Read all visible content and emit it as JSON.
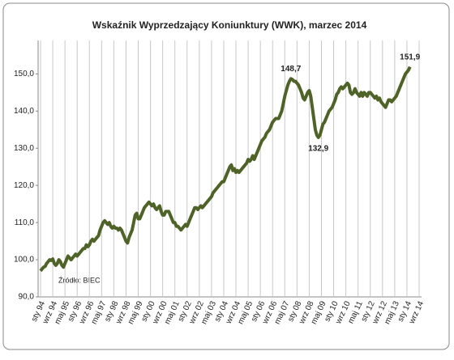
{
  "chart_data": {
    "type": "line",
    "title": "Wskaźnik Wyprzedzający Koniunktury (WWK), marzec 2014",
    "source": "Źródło: BIEC",
    "categories": [
      "sty 94",
      null,
      null,
      null,
      null,
      null,
      null,
      null,
      "wrz 94",
      null,
      null,
      null,
      null,
      null,
      null,
      null,
      "maj 95",
      null,
      null,
      null,
      null,
      null,
      null,
      null,
      "sty 96",
      null,
      null,
      null,
      null,
      null,
      null,
      null,
      "wrz 96",
      null,
      null,
      null,
      null,
      null,
      null,
      null,
      "maj 97",
      null,
      null,
      null,
      null,
      null,
      null,
      null,
      "sty 98",
      null,
      null,
      null,
      null,
      null,
      null,
      null,
      "wrz 98",
      null,
      null,
      null,
      null,
      null,
      null,
      null,
      "maj 99",
      null,
      null,
      null,
      null,
      null,
      null,
      null,
      "sty 00",
      null,
      null,
      null,
      null,
      null,
      null,
      null,
      "wrz 00",
      null,
      null,
      null,
      null,
      null,
      null,
      null,
      "maj 01",
      null,
      null,
      null,
      null,
      null,
      null,
      null,
      "sty 02",
      null,
      null,
      null,
      null,
      null,
      null,
      null,
      "wrz 02",
      null,
      null,
      null,
      null,
      null,
      null,
      null,
      "maj 03",
      null,
      null,
      null,
      null,
      null,
      null,
      null,
      "sty 04",
      null,
      null,
      null,
      null,
      null,
      null,
      null,
      "wrz 04",
      null,
      null,
      null,
      null,
      null,
      null,
      null,
      "maj 05",
      null,
      null,
      null,
      null,
      null,
      null,
      null,
      "sty 06",
      null,
      null,
      null,
      null,
      null,
      null,
      null,
      "wrz 06",
      null,
      null,
      null,
      null,
      null,
      null,
      null,
      "maj 07",
      null,
      null,
      null,
      null,
      null,
      null,
      null,
      "sty 08",
      null,
      null,
      null,
      null,
      null,
      null,
      null,
      "wrz 08",
      null,
      null,
      null,
      null,
      null,
      null,
      null,
      "maj 09",
      null,
      null,
      null,
      null,
      null,
      null,
      null,
      "sty 10",
      null,
      null,
      null,
      null,
      null,
      null,
      null,
      "wrz 10",
      null,
      null,
      null,
      null,
      null,
      null,
      null,
      "maj 11",
      null,
      null,
      null,
      null,
      null,
      null,
      null,
      "sty 12",
      null,
      null,
      null,
      null,
      null,
      null,
      null,
      "wrz 12",
      null,
      null,
      null,
      null,
      null,
      null,
      null,
      "maj 13",
      null,
      null,
      null,
      null,
      null,
      null,
      null,
      "sty 14",
      null,
      null,
      null,
      null,
      null,
      null,
      null,
      "wrz 14"
    ],
    "series": [
      {
        "color": "#4f6228",
        "values": [
          97,
          97.5,
          98,
          98.2,
          99,
          99.5,
          100,
          99.8,
          100.2,
          99,
          98.5,
          99,
          100,
          99.5,
          98.5,
          98,
          99,
          100,
          101,
          100.5,
          100,
          100.5,
          101,
          101.5,
          101,
          101.5,
          102,
          102.5,
          103,
          103,
          104,
          103.5,
          104,
          105,
          105.5,
          105,
          105.5,
          106,
          106.5,
          108,
          109,
          110,
          110.5,
          110,
          109.5,
          110,
          109,
          108.5,
          109,
          108.5,
          108.5,
          108,
          108.5,
          108,
          107,
          106,
          105,
          104.5,
          106,
          107,
          108,
          110,
          112,
          112.5,
          111,
          111,
          112,
          113,
          114,
          114.5,
          115,
          115.5,
          115,
          114.5,
          115,
          114,
          113.5,
          114,
          114.5,
          113,
          112,
          112,
          113,
          113,
          113,
          112,
          111,
          110,
          110,
          109,
          109,
          108.5,
          108,
          108.5,
          109,
          109.5,
          109,
          110,
          111,
          112,
          113,
          114,
          114,
          113.5,
          114,
          114.5,
          114,
          114.5,
          115,
          115.5,
          116,
          116.5,
          117,
          118,
          118.5,
          119,
          119.5,
          120,
          120.5,
          121,
          121,
          122,
          123,
          124,
          125,
          125.5,
          124,
          124.5,
          123.5,
          124,
          123.5,
          124,
          124.5,
          125,
          125.5,
          126,
          127,
          126.5,
          127,
          128,
          127,
          128,
          129,
          130,
          131,
          132,
          132.5,
          133,
          134,
          134.5,
          135,
          136,
          137,
          137.5,
          138,
          138,
          138,
          139,
          140,
          142,
          144,
          145.5,
          147,
          148,
          148.7,
          148.5,
          148,
          148,
          147.5,
          147,
          146,
          145,
          143.5,
          143,
          144,
          145,
          145.5,
          144,
          141,
          138,
          135,
          133.5,
          132.9,
          133.5,
          135,
          136.5,
          137,
          138,
          139,
          140,
          140.5,
          141,
          142,
          143,
          144.5,
          145,
          146,
          146.5,
          146,
          146.5,
          147,
          147.5,
          147,
          145,
          144.5,
          145,
          146,
          145,
          144.5,
          144,
          145,
          144,
          145,
          144.5,
          144,
          145,
          145,
          144.5,
          144,
          143.5,
          144,
          143,
          143.5,
          142.5,
          142,
          141.5,
          141,
          142,
          143,
          143,
          142.5,
          143,
          143.5,
          144,
          145,
          146,
          147,
          148,
          149,
          150,
          150.5,
          151,
          151.9,
          null,
          null,
          null,
          null,
          null,
          null
        ],
        "value_labels": [
          null,
          null,
          null,
          null,
          null,
          null,
          null,
          null,
          null,
          null,
          null,
          null,
          null,
          null,
          null,
          null,
          null,
          null,
          null,
          null,
          null,
          null,
          null,
          null,
          null,
          null,
          null,
          null,
          null,
          null,
          null,
          null,
          null,
          null,
          null,
          null,
          null,
          null,
          null,
          null,
          null,
          null,
          null,
          null,
          null,
          null,
          null,
          null,
          null,
          null,
          null,
          null,
          null,
          null,
          null,
          null,
          null,
          null,
          null,
          null,
          null,
          null,
          null,
          null,
          null,
          null,
          null,
          null,
          null,
          null,
          null,
          null,
          null,
          null,
          null,
          null,
          null,
          null,
          null,
          null,
          null,
          null,
          null,
          null,
          null,
          null,
          null,
          null,
          null,
          null,
          null,
          null,
          null,
          null,
          null,
          null,
          null,
          null,
          null,
          null,
          null,
          null,
          null,
          null,
          null,
          null,
          null,
          null,
          null,
          null,
          null,
          null,
          null,
          null,
          null,
          null,
          null,
          null,
          null,
          null,
          null,
          null,
          null,
          null,
          null,
          null,
          null,
          null,
          null,
          null,
          null,
          null,
          null,
          null,
          null,
          null,
          null,
          null,
          null,
          null,
          null,
          null,
          null,
          null,
          null,
          null,
          null,
          null,
          null,
          null,
          null,
          null,
          null,
          null,
          null,
          null,
          null,
          null,
          null,
          null,
          null,
          null,
          null,
          null,
          "148,7",
          null,
          null,
          null,
          null,
          null,
          null,
          null,
          null,
          null,
          null,
          null,
          null,
          null,
          null,
          null,
          null,
          null,
          "132,9",
          null,
          null,
          null,
          null,
          null,
          null,
          null,
          null,
          null,
          null,
          null,
          null,
          null,
          null,
          null,
          null,
          null,
          null,
          null,
          null,
          null,
          null,
          null,
          null,
          null,
          null,
          null,
          null,
          null,
          null,
          null,
          null,
          null,
          null,
          null,
          null,
          null,
          null,
          null,
          null,
          null,
          null,
          null,
          null,
          null,
          null,
          null,
          null,
          null,
          null,
          null,
          null,
          null,
          null,
          null,
          null,
          null,
          null,
          null,
          "151,9",
          null,
          null,
          null,
          null,
          null,
          null
        ]
      }
    ],
    "ylim": [
      90,
      159
    ],
    "yticks": [
      {
        "value": 90,
        "label": "90,0"
      },
      {
        "value": 100,
        "label": "100,0"
      },
      {
        "value": 110,
        "label": "110,0"
      },
      {
        "value": 120,
        "label": "120,0"
      },
      {
        "value": 130,
        "label": "130,0"
      },
      {
        "value": 140,
        "label": "140,0"
      },
      {
        "value": 150,
        "label": "150,0"
      }
    ],
    "grid": "x"
  }
}
